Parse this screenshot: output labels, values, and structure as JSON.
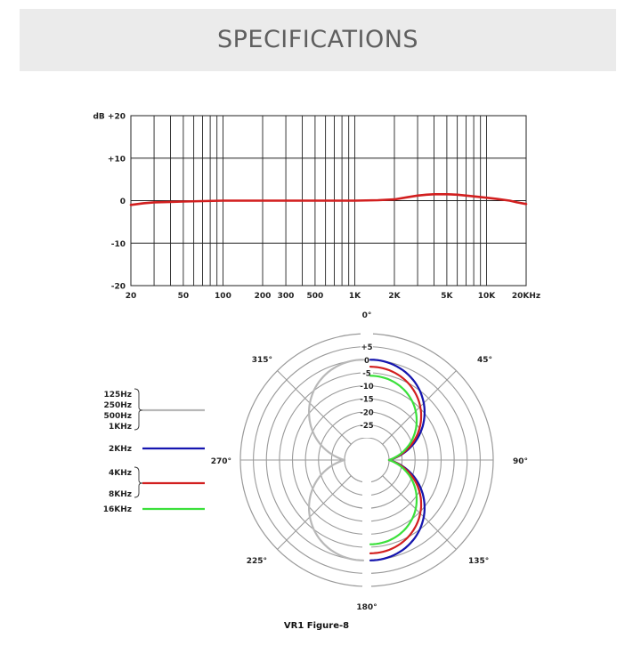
{
  "header": {
    "title": "SPECIFICATIONS"
  },
  "caption": "VR1 Figure-8",
  "chart_data": [
    {
      "type": "line",
      "xscale": "log",
      "xlim": [
        20,
        20000
      ],
      "ylim": [
        -20,
        20
      ],
      "x_tick_values": [
        20,
        50,
        100,
        200,
        300,
        500,
        1000,
        2000,
        5000,
        10000,
        20000
      ],
      "x_tick_labels": [
        "20",
        "50",
        "100",
        "200",
        "300",
        "500",
        "1K",
        "2K",
        "5K",
        "10K",
        "20KHz"
      ],
      "y_tick_values": [
        20,
        10,
        0,
        -10,
        -20
      ],
      "y_tick_labels": [
        "dB +20",
        "+10",
        "0",
        "-10",
        "-20"
      ],
      "grid": true,
      "series": [
        {
          "color": "#d21f1f",
          "x": [
            20,
            25,
            30,
            40,
            50,
            70,
            100,
            150,
            200,
            300,
            500,
            700,
            1000,
            1500,
            2000,
            2500,
            3000,
            3500,
            4000,
            5000,
            6000,
            7000,
            8000,
            10000,
            12000,
            15000,
            17000,
            20000
          ],
          "y": [
            -1.0,
            -0.6,
            -0.4,
            -0.3,
            -0.2,
            -0.1,
            0,
            0,
            0,
            0,
            0,
            0,
            0,
            0.1,
            0.3,
            0.8,
            1.2,
            1.4,
            1.5,
            1.5,
            1.4,
            1.2,
            1.0,
            0.7,
            0.4,
            0.0,
            -0.4,
            -0.8
          ]
        }
      ]
    },
    {
      "type": "polar",
      "r_ticks": [
        "+5",
        "0",
        "-5",
        "-10",
        "-15",
        "-20",
        "-25"
      ],
      "r_range": [
        -25,
        5
      ],
      "angle_labels": [
        {
          "angle": 0,
          "label": "0°"
        },
        {
          "angle": 45,
          "label": "45°"
        },
        {
          "angle": 90,
          "label": "90°"
        },
        {
          "angle": 135,
          "label": "135°"
        },
        {
          "angle": 180,
          "label": "180°"
        },
        {
          "angle": 225,
          "label": "225°"
        },
        {
          "angle": 270,
          "label": "270°"
        },
        {
          "angle": 315,
          "label": "315°"
        }
      ],
      "legend_placement": "left",
      "series": [
        {
          "name_lines": [
            "125Hz",
            "250Hz",
            "500Hz",
            "1KHz"
          ],
          "color": "#b8b8b8",
          "sides": "both",
          "shape": 1.0
        },
        {
          "name_lines": [
            "2KHz"
          ],
          "color": "#1515b0",
          "sides": "right",
          "shape": 1.0
        },
        {
          "name_lines": [
            "4KHz",
            "8KHz"
          ],
          "color": "#d21f1f",
          "sides": "right",
          "shape": 0.93
        },
        {
          "name_lines": [
            "16KHz"
          ],
          "color": "#3be03b",
          "sides": "right",
          "shape": 0.84
        }
      ]
    }
  ]
}
